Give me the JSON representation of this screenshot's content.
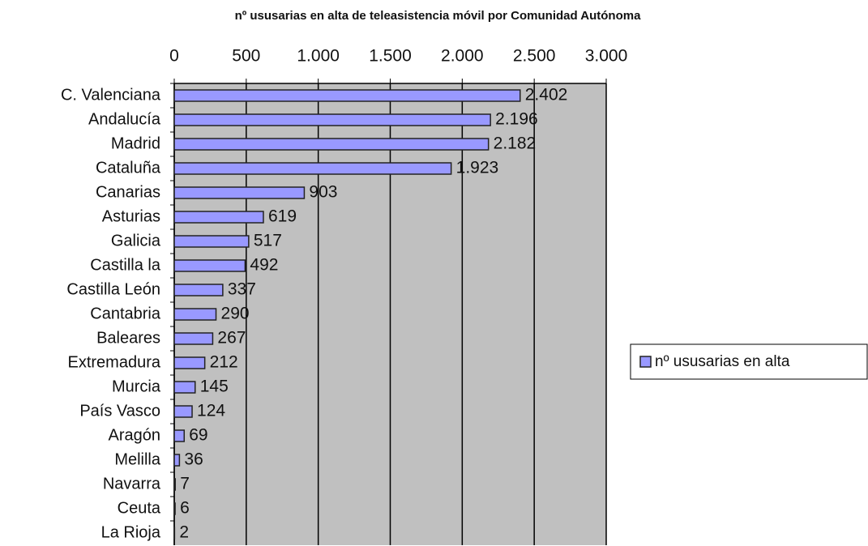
{
  "chart_data": {
    "type": "bar",
    "orientation": "horizontal",
    "title": "nº ususarias en alta de teleasistencia móvil por Comunidad Autónoma",
    "categories": [
      "C. Valenciana",
      "Andalucía",
      "Madrid",
      "Cataluña",
      "Canarias",
      "Asturias",
      "Galicia",
      "Castilla la",
      "Castilla León",
      "Cantabria",
      "Baleares",
      "Extremadura",
      "Murcia",
      "País Vasco",
      "Aragón",
      "Melilla",
      "Navarra",
      "Ceuta",
      "La Rioja"
    ],
    "series": [
      {
        "name": "nº ususarias en alta",
        "color": "#9999ff",
        "values": [
          2402,
          2196,
          2182,
          1923,
          903,
          619,
          517,
          492,
          337,
          290,
          267,
          212,
          145,
          124,
          69,
          36,
          7,
          6,
          2
        ],
        "value_labels": [
          "2.402",
          "2.196",
          "2.182",
          "1.923",
          "903",
          "619",
          "517",
          "492",
          "337",
          "290",
          "267",
          "212",
          "145",
          "124",
          "69",
          "36",
          "7",
          "6",
          "2"
        ]
      }
    ],
    "xlim": [
      0,
      3000
    ],
    "xticks": [
      0,
      500,
      {
        "value": 1000,
        "label": "1.000"
      },
      {
        "value": 1500,
        "label": "1.500"
      },
      {
        "value": 2000,
        "label": "2.000"
      },
      {
        "value": 2500,
        "label": "2.500"
      },
      {
        "value": 3000,
        "label": "3.000"
      }
    ],
    "grid": true,
    "legend": "right"
  }
}
